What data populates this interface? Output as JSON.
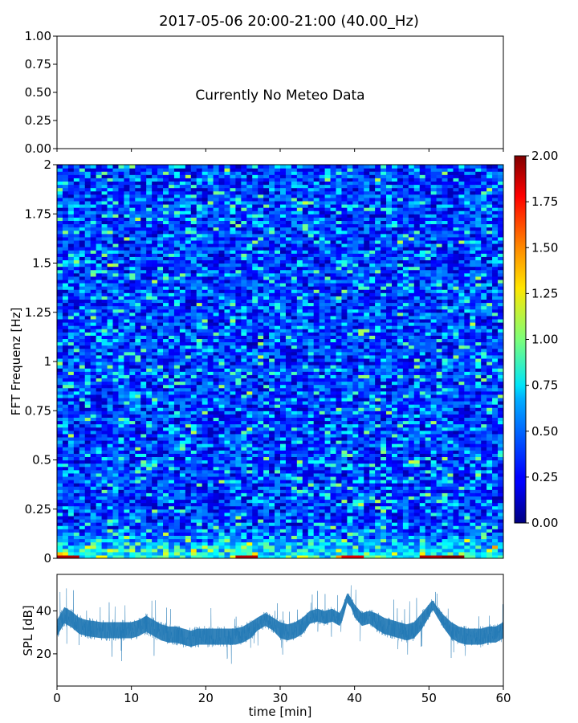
{
  "figure": {
    "title": "2017-05-06 20:00-21:00 (40.00_Hz)"
  },
  "chart_data": [
    {
      "type": "line",
      "panel": "meteo",
      "annotation": "Currently No Meteo Data",
      "ylim": [
        0,
        1
      ],
      "xlim": [
        0,
        60
      ],
      "yticks": [
        "0.00",
        "0.25",
        "0.50",
        "0.75",
        "1.00"
      ],
      "xlabel": "",
      "ylabel": "",
      "grid": false
    },
    {
      "type": "heatmap",
      "panel": "spectrogram",
      "ylabel": "FFT Frequenz [Hz]",
      "xlabel": "",
      "xlim": [
        0,
        60
      ],
      "ylim": [
        0,
        2
      ],
      "yticks": [
        "0",
        "0.25",
        "0.5",
        "0.75",
        "1",
        "1.25",
        "1.5",
        "1.75",
        "2"
      ],
      "colormap": "jet",
      "colorbar": {
        "range": [
          0,
          2
        ],
        "ticks": [
          "0.00",
          "0.25",
          "0.50",
          "0.75",
          "1.00",
          "1.25",
          "1.50",
          "1.75",
          "2.00"
        ]
      },
      "typical_value": 0.3,
      "low_freq_peaks": [
        {
          "t": 1.5,
          "value": 1.9
        },
        {
          "t": 25.5,
          "value": 1.9
        },
        {
          "t": 39.5,
          "value": 1.8
        },
        {
          "t": 50.5,
          "value": 1.9
        },
        {
          "t": 53.5,
          "value": 2.0
        }
      ]
    },
    {
      "type": "line",
      "panel": "spl",
      "ylabel": "SPL [dB]",
      "xlabel": "time [min]",
      "xlim": [
        0,
        60
      ],
      "ylim": [
        5,
        57
      ],
      "yticks": [
        "20",
        "40"
      ],
      "xticks": [
        "0",
        "10",
        "20",
        "30",
        "40",
        "50",
        "60"
      ],
      "series_color": "#1f77b4",
      "series": [
        {
          "x": [
            0,
            1,
            2,
            3,
            4,
            6,
            8,
            10,
            11,
            12,
            13,
            14,
            15,
            16,
            17,
            18,
            19,
            20,
            22,
            24,
            25,
            26,
            27,
            28,
            29,
            30,
            31,
            32,
            33,
            34,
            35,
            36,
            37,
            38,
            38.5,
            39,
            39.5,
            40,
            41,
            42,
            43,
            44,
            45,
            46,
            47,
            48,
            49,
            50,
            50.5,
            51,
            52,
            53,
            54,
            55,
            56,
            57,
            58,
            59,
            60
          ],
          "mean": [
            32,
            38,
            36,
            33,
            32,
            31,
            31,
            31,
            32,
            34,
            32,
            30,
            29,
            29,
            28,
            27,
            28,
            28,
            28,
            28,
            29,
            31,
            34,
            36,
            34,
            31,
            30,
            31,
            33,
            37,
            38,
            37,
            38,
            36,
            40,
            46,
            44,
            40,
            36,
            37,
            35,
            33,
            32,
            31,
            30,
            31,
            35,
            40,
            43,
            40,
            35,
            31,
            29,
            28,
            28,
            28,
            29,
            29,
            31
          ],
          "spread": [
            5,
            5,
            5,
            5,
            5,
            5,
            5,
            5,
            5,
            5,
            5,
            5,
            5,
            5,
            5,
            5,
            5,
            5,
            5,
            5,
            5,
            5,
            4,
            4,
            4,
            5,
            5,
            5,
            5,
            4,
            4,
            4,
            4,
            4,
            4,
            3,
            3,
            4,
            4,
            4,
            5,
            5,
            5,
            5,
            5,
            5,
            5,
            4,
            3,
            3,
            4,
            5,
            5,
            5,
            5,
            5,
            5,
            5,
            5
          ]
        }
      ]
    }
  ]
}
